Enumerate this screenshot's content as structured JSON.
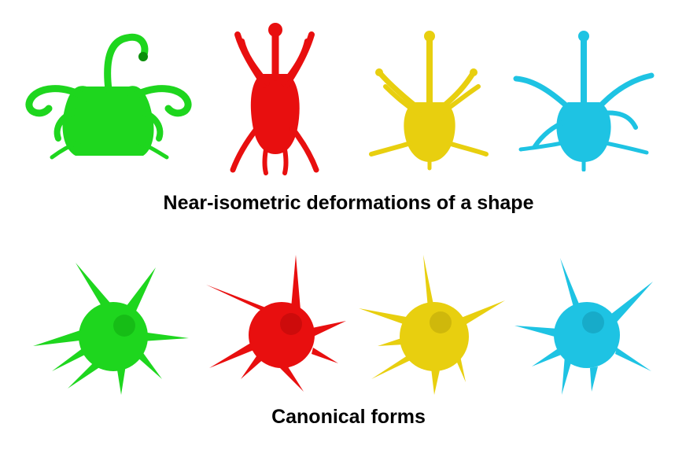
{
  "rows": [
    {
      "caption": "Near-isometric deformations of a shape",
      "kind": "deformation",
      "shapes": [
        {
          "color": "#1ed61e",
          "dark": "#0a8f0a"
        },
        {
          "color": "#e80f0f",
          "dark": "#9a0606"
        },
        {
          "color": "#e8cf0f",
          "dark": "#a08b05"
        },
        {
          "color": "#1ec3e3",
          "dark": "#0b7f97"
        }
      ]
    },
    {
      "caption": "Canonical forms",
      "kind": "canonical",
      "shapes": [
        {
          "color": "#1ed61e",
          "dark": "#0a8f0a"
        },
        {
          "color": "#e80f0f",
          "dark": "#9a0606"
        },
        {
          "color": "#e8cf0f",
          "dark": "#a08b05"
        },
        {
          "color": "#1ec3e3",
          "dark": "#0b7f97"
        }
      ]
    }
  ]
}
